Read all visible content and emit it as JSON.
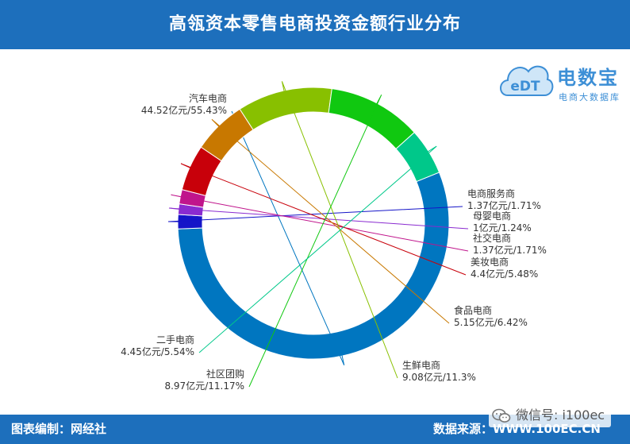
{
  "header": {
    "title": "高瓴资本零售电商投资金额行业分布"
  },
  "logo": {
    "badge": "eDT",
    "name": "电数宝",
    "subtitle": "电商大数据库"
  },
  "footer": {
    "left": "图表编制：网经社",
    "right": "数据来源：WWW.100EC.CN"
  },
  "watermark": {
    "text": "微信号: i100ec"
  },
  "colors": {
    "header": "#1d6fbc",
    "footer": "#1d6fbc"
  },
  "chart_data": {
    "type": "pie",
    "donut": true,
    "title": "高瓴资本零售电商投资金额行业分布",
    "unit": "亿元",
    "slices": [
      {
        "name": "汽车电商",
        "value": 44.52,
        "percent": 55.43,
        "label": "44.52亿元/55.43%",
        "color": "#0076c0"
      },
      {
        "name": "电商服务商",
        "value": 1.37,
        "percent": 1.71,
        "label": "1.37亿元/1.71%",
        "color": "#1515c8"
      },
      {
        "name": "母婴电商",
        "value": 1,
        "percent": 1.24,
        "label": "1亿元/1.24%",
        "color": "#8a2bd0"
      },
      {
        "name": "社交电商",
        "value": 1.37,
        "percent": 1.71,
        "label": "1.37亿元/1.71%",
        "color": "#c0158c"
      },
      {
        "name": "美妆电商",
        "value": 4.4,
        "percent": 5.48,
        "label": "4.4亿元/5.48%",
        "color": "#c8000a"
      },
      {
        "name": "食品电商",
        "value": 5.15,
        "percent": 6.42,
        "label": "5.15亿元/6.42%",
        "color": "#c87800"
      },
      {
        "name": "生鲜电商",
        "value": 9.08,
        "percent": 11.3,
        "label": "9.08亿元/11.3%",
        "color": "#88c000"
      },
      {
        "name": "社区团购",
        "value": 8.97,
        "percent": 11.17,
        "label": "8.97亿元/11.17%",
        "color": "#10c810"
      },
      {
        "name": "二手电商",
        "value": 4.45,
        "percent": 5.54,
        "label": "4.45亿元/5.54%",
        "color": "#00c88a"
      }
    ]
  }
}
